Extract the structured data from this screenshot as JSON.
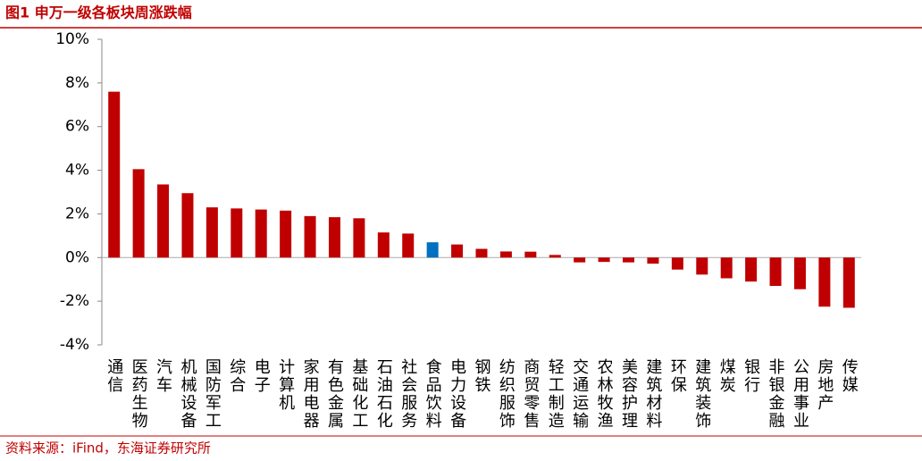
{
  "chart_data": {
    "type": "bar",
    "title": "图1  申万一级各板块周涨跌幅",
    "source": "资料来源：iFind，东海证券研究所",
    "categories": [
      "通信",
      "医药生物",
      "汽车",
      "机械设备",
      "国防军工",
      "综合",
      "电子",
      "计算机",
      "家用电器",
      "有色金属",
      "基础化工",
      "石油石化",
      "社会服务",
      "食品饮料",
      "电力设备",
      "钢铁",
      "纺织服饰",
      "商贸零售",
      "轻工制造",
      "交通运输",
      "农林牧渔",
      "美容护理",
      "建筑材料",
      "环保",
      "建筑装饰",
      "煤炭",
      "银行",
      "非银金融",
      "公用事业",
      "房地产",
      "传媒"
    ],
    "values": [
      7.6,
      4.05,
      3.35,
      2.95,
      2.3,
      2.25,
      2.2,
      2.15,
      1.9,
      1.85,
      1.8,
      1.15,
      1.1,
      0.7,
      0.6,
      0.4,
      0.28,
      0.27,
      0.12,
      -0.22,
      -0.2,
      -0.22,
      -0.28,
      -0.55,
      -0.78,
      -0.95,
      -1.1,
      -1.3,
      -1.45,
      -2.25,
      -2.3
    ],
    "colors": [
      "#c00000",
      "#c00000",
      "#c00000",
      "#c00000",
      "#c00000",
      "#c00000",
      "#c00000",
      "#c00000",
      "#c00000",
      "#c00000",
      "#c00000",
      "#c00000",
      "#c00000",
      "#0070c0",
      "#c00000",
      "#c00000",
      "#c00000",
      "#c00000",
      "#c00000",
      "#c00000",
      "#c00000",
      "#c00000",
      "#c00000",
      "#c00000",
      "#c00000",
      "#c00000",
      "#c00000",
      "#c00000",
      "#c00000",
      "#c00000",
      "#c00000"
    ],
    "ylim": [
      -4,
      10
    ],
    "yticks": [
      {
        "value": -4,
        "label": "-4%"
      },
      {
        "value": -2,
        "label": "-2%"
      },
      {
        "value": 0,
        "label": "0%"
      },
      {
        "value": 2,
        "label": "2%"
      },
      {
        "value": 4,
        "label": "4%"
      },
      {
        "value": 6,
        "label": "6%"
      },
      {
        "value": 8,
        "label": "8%"
      },
      {
        "value": 10,
        "label": "10%"
      }
    ],
    "grid": false
  }
}
